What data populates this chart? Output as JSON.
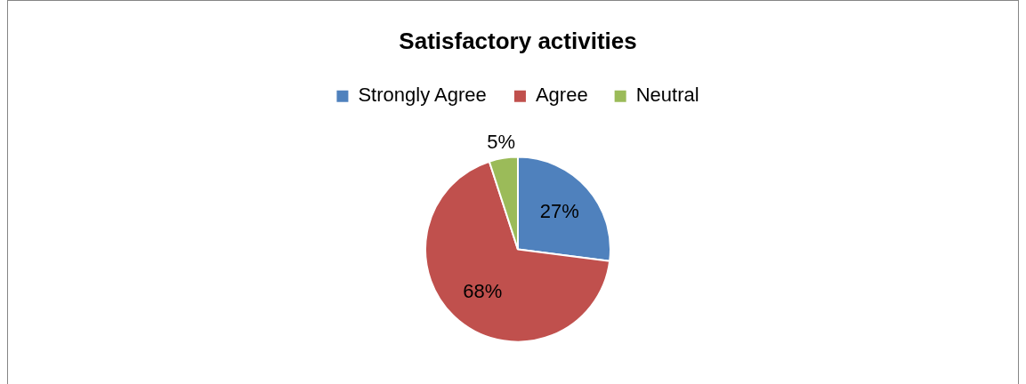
{
  "chart_data": {
    "type": "pie",
    "title": "Satisfactory activities",
    "categories": [
      "Strongly Agree",
      "Agree",
      "Neutral"
    ],
    "values": [
      27,
      68,
      5
    ],
    "colors": [
      "#4f81bd",
      "#c0504d",
      "#9bbb59"
    ],
    "value_labels": [
      "27%",
      "68%",
      "5%"
    ],
    "legend": "top"
  }
}
